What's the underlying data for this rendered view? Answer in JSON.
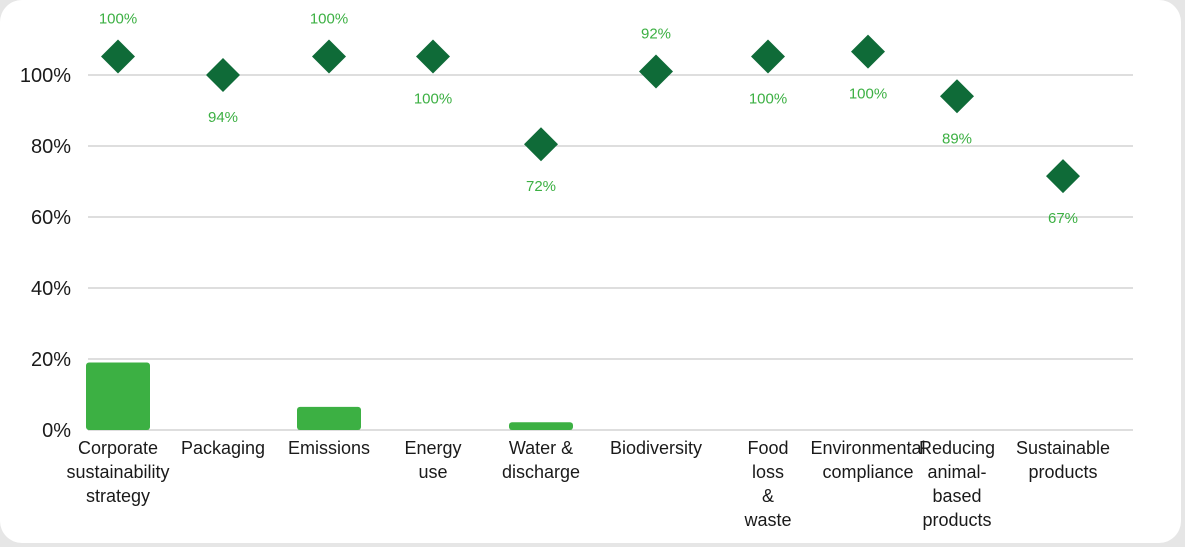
{
  "chart_data": {
    "type": "bar",
    "categories": [
      [
        "Corporate",
        "sustainability",
        "strategy"
      ],
      [
        "Packaging"
      ],
      [
        "Emissions"
      ],
      [
        "Energy",
        "use"
      ],
      [
        "Water &",
        "discharge"
      ],
      [
        "Biodiversity"
      ],
      [
        "Food",
        "loss",
        "&",
        "waste"
      ],
      [
        "Environmental",
        "compliance"
      ],
      [
        "Reducing",
        "animal-",
        "based",
        "products"
      ],
      [
        "Sustainable",
        "products"
      ]
    ],
    "series": [
      {
        "marker": "bar",
        "color": "#3cb043",
        "values": [
          19,
          0,
          6.5,
          0,
          2.2,
          0,
          0,
          0,
          0,
          0
        ]
      },
      {
        "marker": "diamond",
        "color": "#0f6b38",
        "values": [
          105.2,
          100,
          105.2,
          105.2,
          80.5,
          101,
          105.2,
          106.6,
          94,
          71.5
        ],
        "labels": [
          "100%",
          "94%",
          "100%",
          "100%",
          "72%",
          "92%",
          "100%",
          "100%",
          "89%",
          "67%"
        ],
        "label_positions": [
          "above",
          "below",
          "above",
          "below",
          "below",
          "above",
          "below",
          "below",
          "below",
          "below"
        ]
      }
    ],
    "yticks": [
      "0%",
      "20%",
      "40%",
      "60%",
      "80%",
      "100%"
    ],
    "ylim": [
      0,
      116
    ],
    "grid": true,
    "label_color": "#3cb043"
  }
}
